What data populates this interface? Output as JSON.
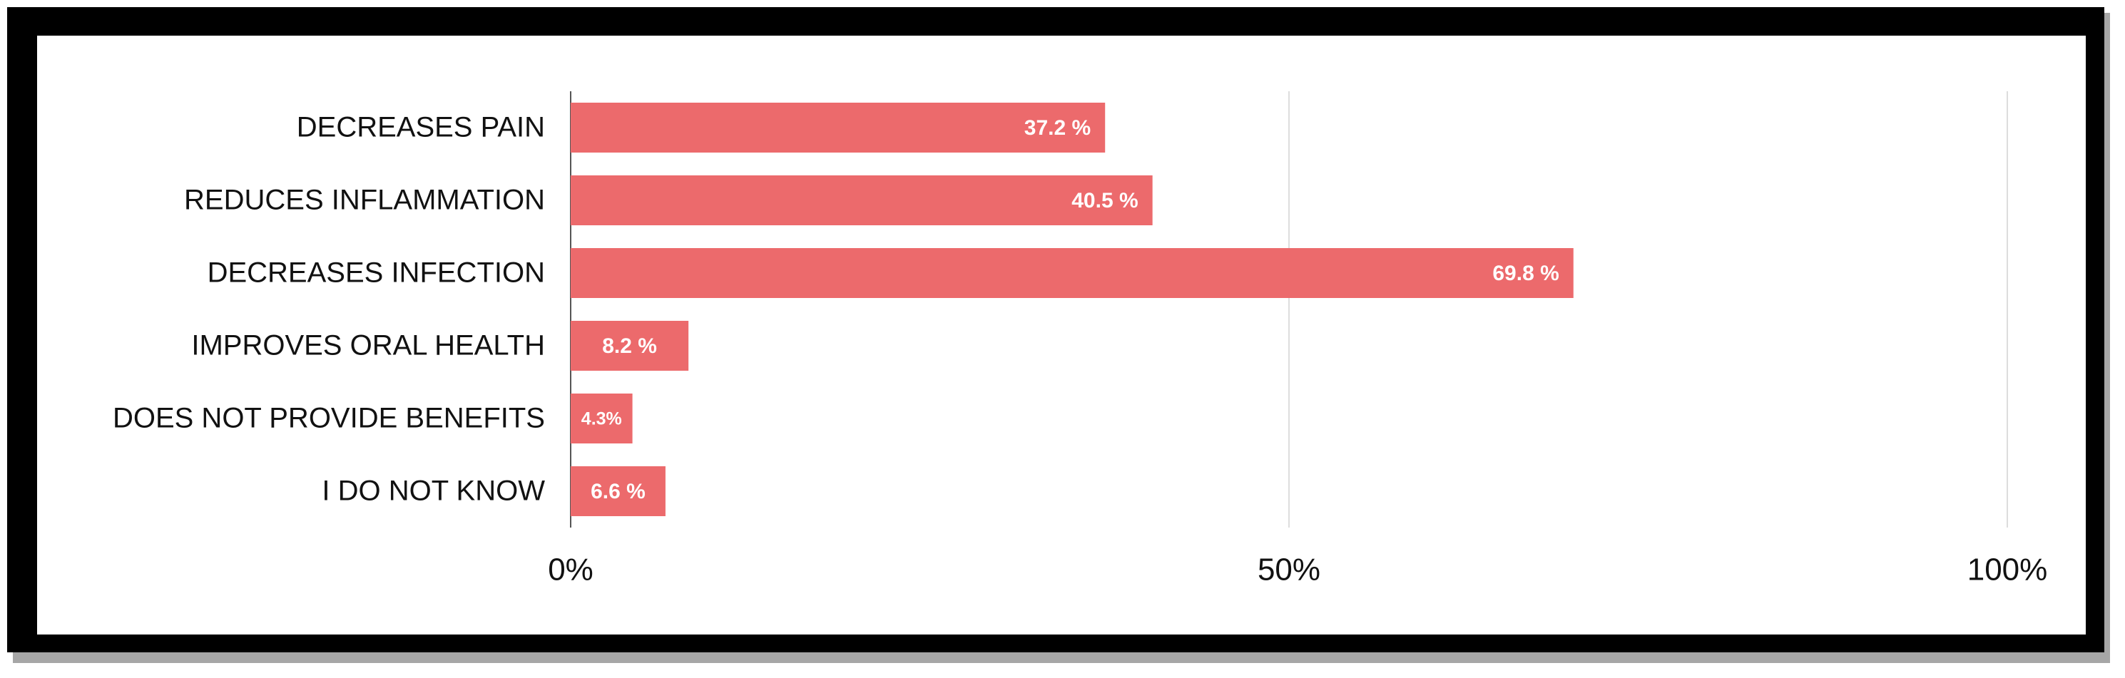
{
  "chart_data": {
    "type": "bar",
    "orientation": "horizontal",
    "categories": [
      "DECREASES PAIN",
      "REDUCES INFLAMMATION",
      "DECREASES INFECTION",
      "IMPROVES ORAL HEALTH",
      "DOES NOT PROVIDE BENEFITS",
      "I DO NOT KNOW"
    ],
    "values": [
      37.2,
      40.5,
      69.8,
      8.2,
      4.3,
      6.6
    ],
    "value_labels": [
      "37.2 %",
      "40.5 %",
      "69.8 %",
      "8.2 %",
      "4.3%",
      "6.6 %"
    ],
    "color": "#ec6a6c",
    "xlim": [
      0,
      100
    ],
    "xticks": [
      {
        "value": 0,
        "label": "0%"
      },
      {
        "value": 50,
        "label": "50%"
      },
      {
        "value": 100,
        "label": "100%"
      }
    ],
    "grid": true
  }
}
